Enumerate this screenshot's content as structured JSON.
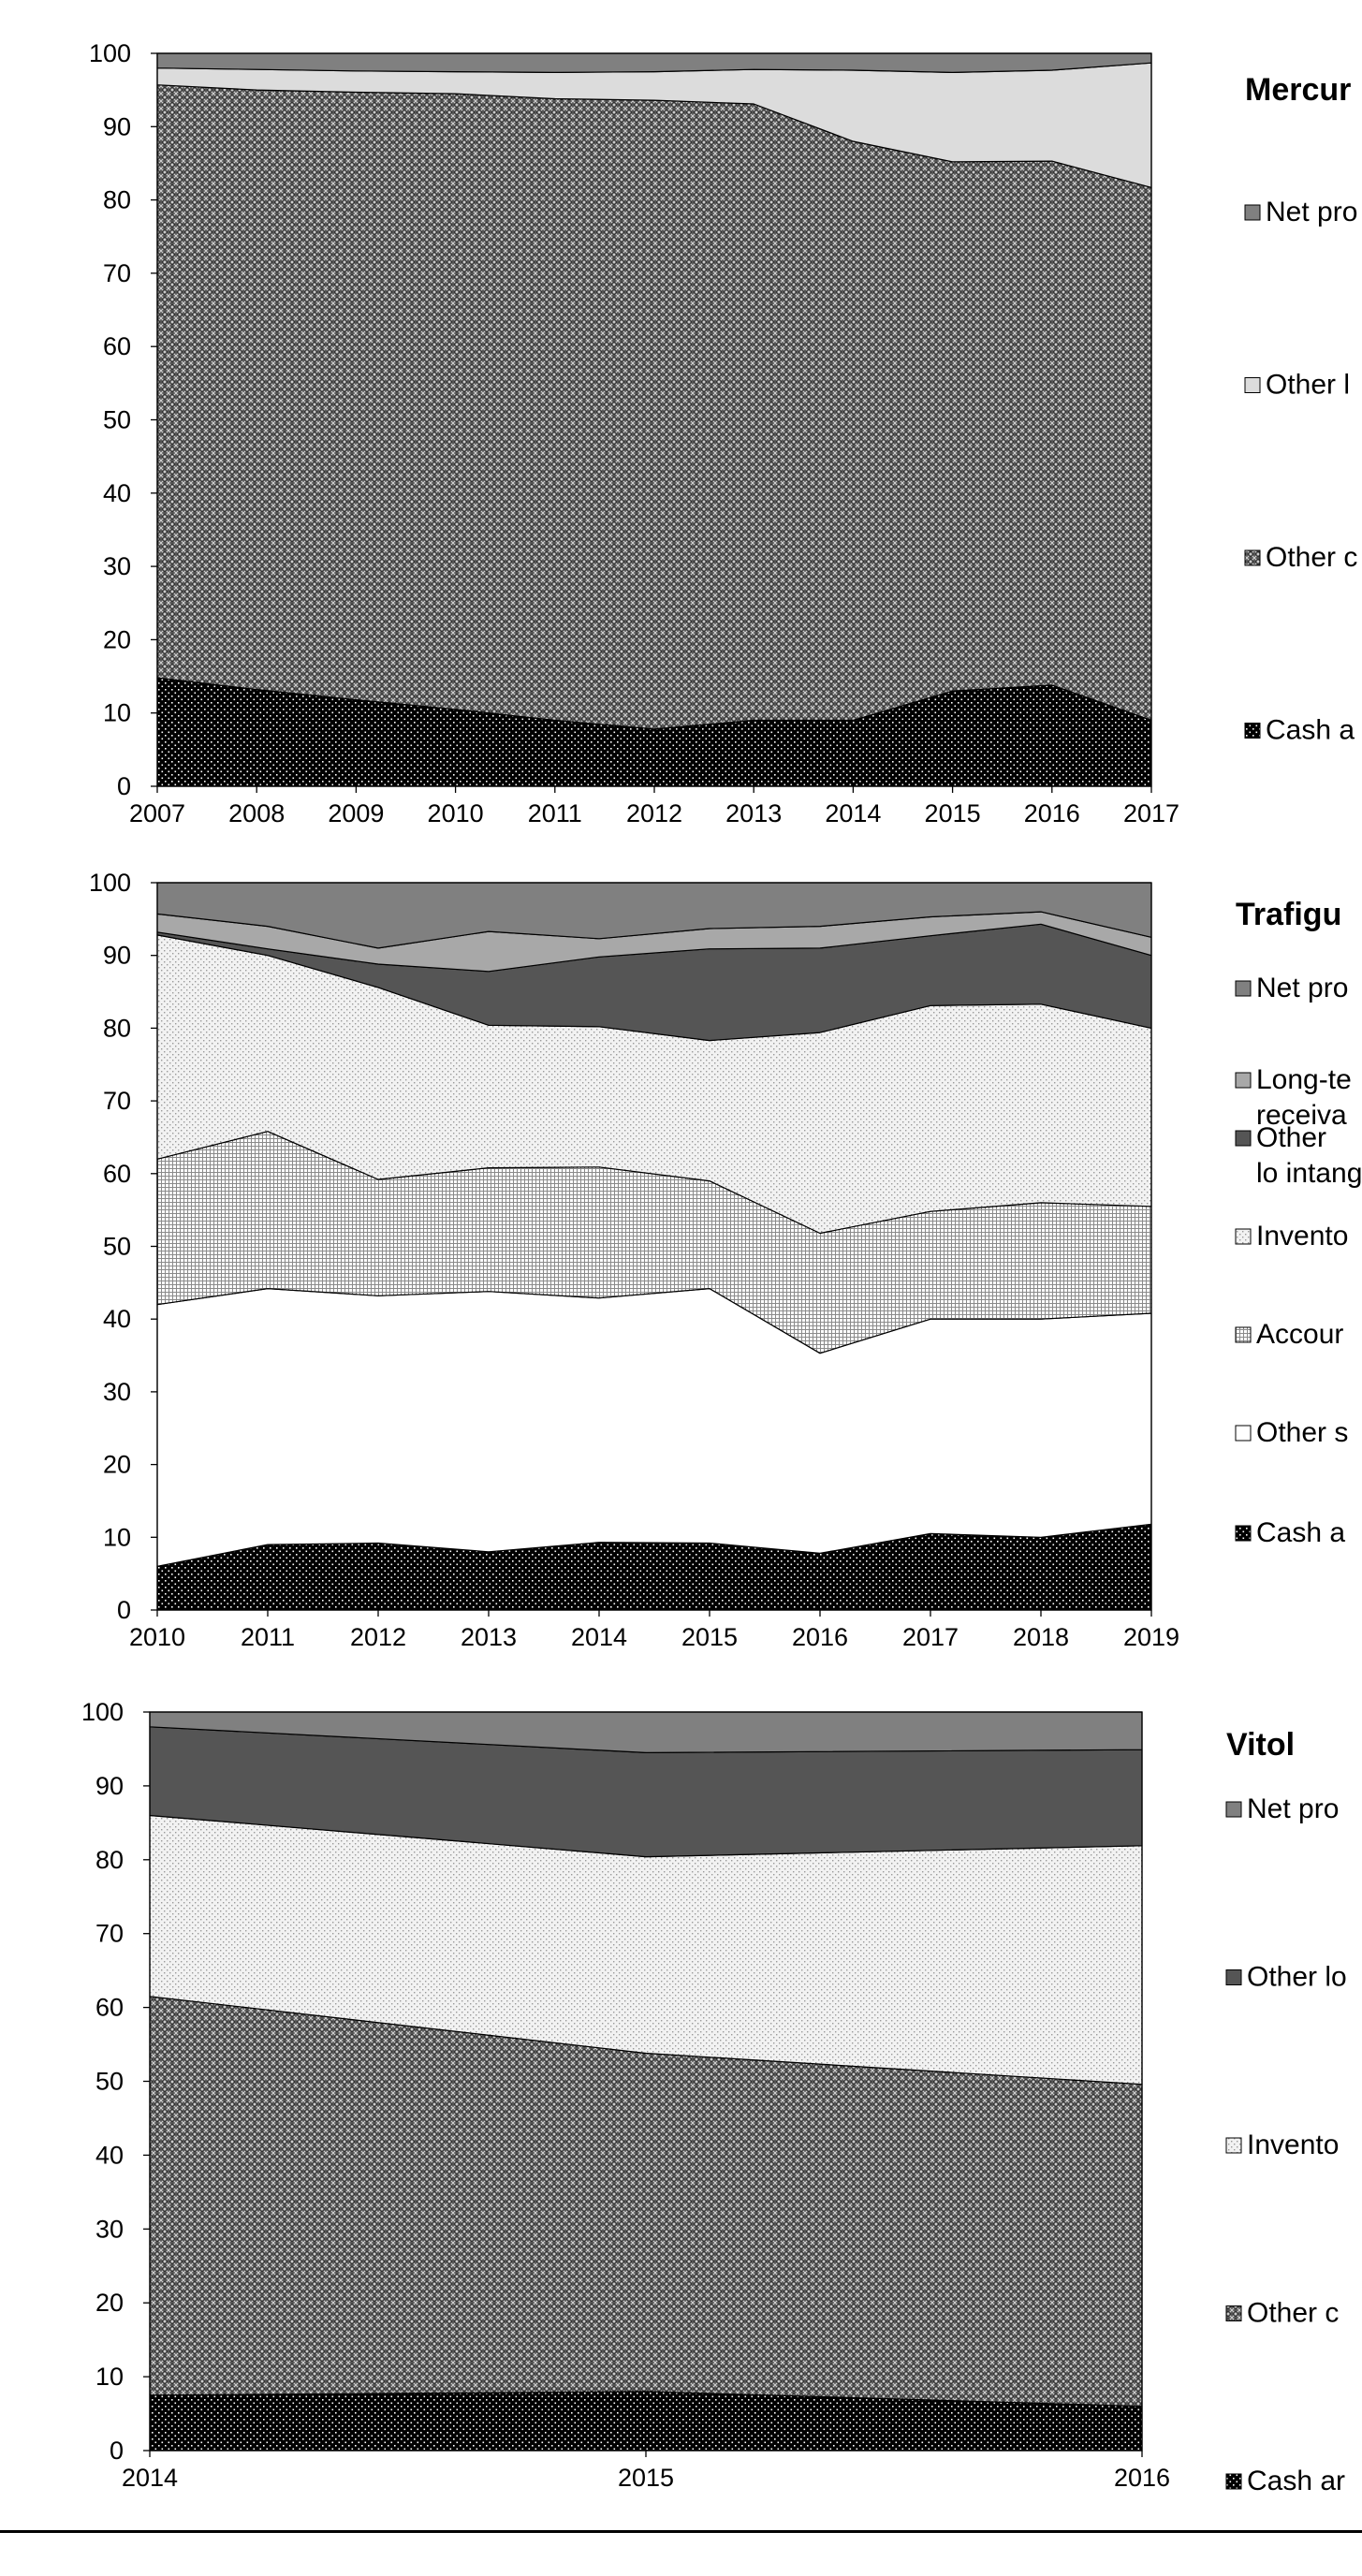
{
  "chart_data": [
    {
      "type": "area",
      "title": "Mercuria",
      "visible_title": "Mercur",
      "x": [
        2007,
        2008,
        2009,
        2010,
        2011,
        2012,
        2013,
        2014,
        2015,
        2016,
        2017
      ],
      "ylim": [
        0,
        100
      ],
      "yticks": [
        0,
        10,
        20,
        30,
        40,
        50,
        60,
        70,
        80,
        90,
        100
      ],
      "xtick_labels": [
        "2007",
        "2008",
        "2009",
        "2010",
        "2011",
        "2012",
        "2013",
        "2014",
        "2015",
        "2016",
        "2017"
      ],
      "legend_position": "right",
      "series": [
        {
          "name": "Cash a",
          "pattern": "cash",
          "values": [
            14.8,
            13.2,
            11.8,
            10.5,
            9.0,
            7.8,
            9.0,
            9.0,
            13.0,
            13.8,
            9.0
          ]
        },
        {
          "name": "Other c",
          "pattern": "crosshatch",
          "values": [
            80.9,
            81.8,
            82.9,
            84.0,
            84.8,
            85.8,
            84.1,
            79.0,
            72.2,
            71.5,
            72.7
          ]
        },
        {
          "name": "Other l",
          "pattern": "light",
          "values": [
            2.3,
            2.8,
            2.9,
            3.0,
            3.6,
            3.9,
            4.7,
            9.7,
            12.2,
            12.4,
            17.0
          ]
        },
        {
          "name": "Net pro",
          "pattern": "midgray",
          "values": [
            2.0,
            2.2,
            2.4,
            2.5,
            2.6,
            2.5,
            2.2,
            2.3,
            2.6,
            2.3,
            1.3
          ]
        }
      ]
    },
    {
      "type": "area",
      "title": "Trafigura",
      "visible_title": "Trafigu",
      "x": [
        2010,
        2011,
        2012,
        2013,
        2014,
        2015,
        2016,
        2017,
        2018,
        2019
      ],
      "ylim": [
        0,
        100
      ],
      "yticks": [
        0,
        10,
        20,
        30,
        40,
        50,
        60,
        70,
        80,
        90,
        100
      ],
      "xtick_labels": [
        "2010",
        "2011",
        "2012",
        "2013",
        "2014",
        "2015",
        "2016",
        "2017",
        "2018",
        "2019"
      ],
      "legend_position": "right",
      "series": [
        {
          "name": "Cash a",
          "pattern": "cash",
          "values": [
            6.0,
            9.0,
            9.2,
            8.0,
            9.3,
            9.2,
            7.8,
            10.5,
            10.0,
            11.8
          ]
        },
        {
          "name": "Other s",
          "pattern": "white",
          "values": [
            36.0,
            35.2,
            34.0,
            35.8,
            33.6,
            35.0,
            27.5,
            29.5,
            30.0,
            29.0
          ]
        },
        {
          "name": "Accour",
          "pattern": "grid",
          "values": [
            20.0,
            21.6,
            16.0,
            17.0,
            18.0,
            14.8,
            16.5,
            14.8,
            16.0,
            14.7
          ]
        },
        {
          "name": "Invento",
          "pattern": "dots",
          "values": [
            30.8,
            24.2,
            26.4,
            19.6,
            19.3,
            19.3,
            27.6,
            28.3,
            27.3,
            24.5
          ]
        },
        {
          "name": "Other lo intangib",
          "pattern": "darkgray",
          "values": [
            0.4,
            0.9,
            3.2,
            7.4,
            9.6,
            12.6,
            11.6,
            9.6,
            11.0,
            10.0
          ]
        },
        {
          "name": "Long-te receiva",
          "pattern": "lightgray",
          "values": [
            2.5,
            3.1,
            2.2,
            5.5,
            2.5,
            2.8,
            3.0,
            2.6,
            1.7,
            2.5
          ]
        },
        {
          "name": "Net pro",
          "pattern": "midgray",
          "values": [
            4.3,
            6.0,
            9.0,
            6.7,
            7.7,
            6.3,
            6.0,
            4.7,
            4.0,
            7.5
          ]
        }
      ]
    },
    {
      "type": "area",
      "title": "Vitol",
      "visible_title": "Vitol",
      "x": [
        2014,
        2015,
        2016
      ],
      "ylim": [
        0,
        100
      ],
      "yticks": [
        0,
        10,
        20,
        30,
        40,
        50,
        60,
        70,
        80,
        90,
        100
      ],
      "xtick_labels": [
        "2014",
        "2015",
        "2016"
      ],
      "legend_position": "right",
      "series": [
        {
          "name": "Cash ar",
          "pattern": "cash",
          "values": [
            7.5,
            8.0,
            6.0
          ]
        },
        {
          "name": "Other c",
          "pattern": "crosshatch",
          "values": [
            54.0,
            45.8,
            43.6
          ]
        },
        {
          "name": "Invento",
          "pattern": "dots",
          "values": [
            24.5,
            26.6,
            32.3
          ]
        },
        {
          "name": "Other lo",
          "pattern": "darkgray",
          "values": [
            12.0,
            14.1,
            13.0
          ]
        },
        {
          "name": "Net pro",
          "pattern": "midgray",
          "values": [
            2.0,
            5.5,
            5.1
          ]
        }
      ]
    }
  ]
}
